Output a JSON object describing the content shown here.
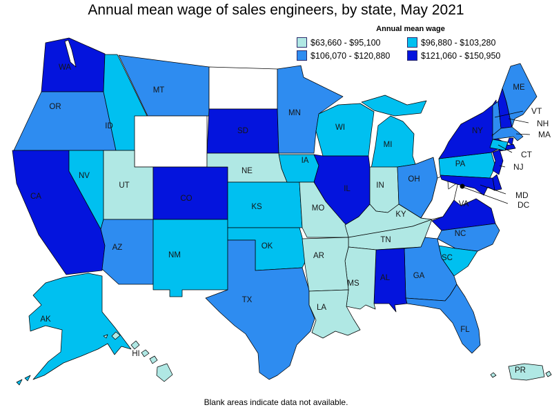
{
  "title": "Annual mean wage of sales engineers, by state, May 2021",
  "legend": {
    "title": "Annual mean wage",
    "items": [
      {
        "label": "$63,660 - $95,100",
        "color": "#b0e8e4"
      },
      {
        "label": "$96,880 - $103,280",
        "color": "#00c0f0"
      },
      {
        "label": "$106,070 - $120,880",
        "color": "#2e8cf0"
      },
      {
        "label": "$121,060 - $150,950",
        "color": "#0414dd"
      }
    ]
  },
  "footnote": "Blank areas indicate data not available.",
  "map_labels": [
    "WA",
    "OR",
    "CA",
    "NV",
    "ID",
    "MT",
    "UT",
    "AZ",
    "CO",
    "NM",
    "KS",
    "OK",
    "TX",
    "NE",
    "SD",
    "MN",
    "IA",
    "WI",
    "MI",
    "IL",
    "IN",
    "MO",
    "KY",
    "TN",
    "AR",
    "MS",
    "LA",
    "AL",
    "GA",
    "FL",
    "SC",
    "NC",
    "VA",
    "OH",
    "PA",
    "NY",
    "ME",
    "AK",
    "HI",
    "PR"
  ],
  "callout_labels": [
    "VT",
    "NH",
    "MA",
    "CT",
    "NJ",
    "MD",
    "DC"
  ],
  "chart_data": {
    "type": "heatmap",
    "map_form": "us-state-choropleth",
    "title": "Annual mean wage of sales engineers, by state, May 2021",
    "legend_title": "Annual mean wage",
    "legend_position": "top-right",
    "no_data_color": "#ffffff",
    "no_data_states": [
      "WY",
      "ND",
      "WV"
    ],
    "dc_marker_color": "#000000",
    "bins": [
      {
        "range": "$63,660 - $95,100",
        "low": 63660,
        "high": 95100,
        "color": "#b0e8e4",
        "states": [
          "UT",
          "NE",
          "IN",
          "MO",
          "KY",
          "TN",
          "AR",
          "MS",
          "LA",
          "HI",
          "PR"
        ]
      },
      {
        "range": "$96,880 - $103,280",
        "low": 96880,
        "high": 103280,
        "color": "#00c0f0",
        "states": [
          "AK",
          "ID",
          "NV",
          "NM",
          "KS",
          "OK",
          "IA",
          "WI",
          "MI",
          "PA",
          "CT",
          "SC"
        ]
      },
      {
        "range": "$106,070 - $120,880",
        "low": 106070,
        "high": 120880,
        "color": "#2e8cf0",
        "states": [
          "OR",
          "MT",
          "AZ",
          "TX",
          "MN",
          "OH",
          "GA",
          "NC",
          "FL",
          "ME",
          "VT",
          "MA"
        ]
      },
      {
        "range": "$121,060 - $150,950",
        "low": 121060,
        "high": 150950,
        "color": "#0414dd",
        "states": [
          "WA",
          "CA",
          "CO",
          "SD",
          "IL",
          "NY",
          "NJ",
          "NH",
          "RI",
          "DE",
          "MD",
          "VA",
          "AL"
        ]
      }
    ],
    "footnote": "Blank areas indicate data not available."
  }
}
